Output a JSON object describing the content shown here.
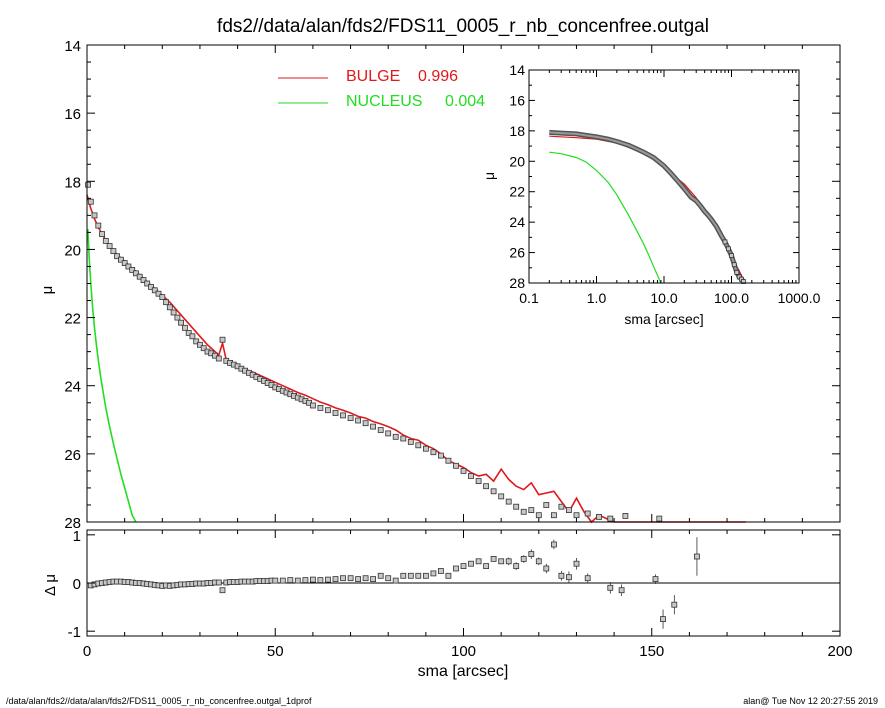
{
  "title": "fds2//data/alan/fds2/FDS11_0005_r_nb_concenfree.outgal",
  "footer_left": "/data/alan/fds2//data/alan/fds2/FDS11_0005_r_nb_concenfree.outgal_1dprof",
  "footer_right": "alan@  Tue Nov 12 20:27:55 2019",
  "colors": {
    "bulge": "#e0191c",
    "nucleus": "#22dd22",
    "data": "#555555",
    "axis": "#000000"
  },
  "chart_data": [
    {
      "id": "main",
      "type": "scatter",
      "xlabel": "",
      "ylabel": "μ",
      "xlim": [
        0,
        200
      ],
      "ylim": [
        28,
        14
      ],
      "ytick_labels": [
        "14",
        "16",
        "18",
        "20",
        "22",
        "24",
        "26",
        "28"
      ],
      "legend": [
        {
          "label": "BULGE",
          "value": "0.996",
          "color": "#e0191c"
        },
        {
          "label": "NUCLEUS",
          "value": "0.004",
          "color": "#22dd22"
        }
      ],
      "series": [
        {
          "name": "data",
          "x": [
            0.3,
            1,
            2,
            3,
            4,
            5,
            6,
            7,
            8,
            9,
            10,
            11,
            12,
            13,
            14,
            15,
            16,
            17,
            18,
            19,
            20,
            21,
            22,
            23,
            24,
            25,
            26,
            27,
            28,
            29,
            30,
            31,
            32,
            33,
            34,
            35,
            36,
            37,
            38,
            39,
            40,
            41,
            42,
            43,
            44,
            45,
            46,
            47,
            48,
            49,
            50,
            51,
            52,
            53,
            54,
            55,
            56,
            57,
            58,
            59,
            60,
            62,
            64,
            66,
            68,
            70,
            72,
            74,
            76,
            78,
            80,
            82,
            84,
            86,
            88,
            90,
            92,
            94,
            96,
            98,
            100,
            102,
            104,
            106,
            108,
            110,
            112,
            114,
            116,
            118,
            120,
            122,
            124,
            126,
            128,
            130,
            133,
            136,
            139,
            143,
            148,
            152,
            156
          ],
          "y": [
            18.1,
            18.6,
            19.0,
            19.3,
            19.55,
            19.75,
            19.9,
            20.05,
            20.2,
            20.3,
            20.4,
            20.5,
            20.6,
            20.7,
            20.8,
            20.9,
            21.0,
            21.1,
            21.2,
            21.3,
            21.4,
            21.55,
            21.7,
            21.85,
            22.0,
            22.15,
            22.3,
            22.45,
            22.55,
            22.7,
            22.8,
            22.9,
            23.0,
            23.05,
            23.12,
            23.2,
            22.65,
            23.27,
            23.33,
            23.38,
            23.43,
            23.5,
            23.56,
            23.62,
            23.68,
            23.74,
            23.8,
            23.86,
            23.92,
            23.98,
            24.05,
            24.1,
            24.15,
            24.2,
            24.25,
            24.3,
            24.35,
            24.4,
            24.45,
            24.5,
            24.58,
            24.65,
            24.72,
            24.8,
            24.87,
            24.95,
            25.02,
            25.1,
            25.2,
            25.3,
            25.4,
            25.5,
            25.55,
            25.65,
            25.75,
            25.85,
            25.95,
            26.05,
            26.2,
            26.35,
            26.5,
            26.65,
            26.8,
            26.95,
            27.1,
            27.25,
            27.4,
            27.55,
            27.7,
            27.65,
            27.8,
            27.5,
            27.8,
            27.55,
            27.65,
            27.8,
            27.75,
            27.85,
            27.9,
            27.82,
            28.05,
            27.9,
            28.05
          ]
        },
        {
          "name": "bulge",
          "x": [
            0,
            1,
            2,
            3,
            4,
            6,
            8,
            10,
            12,
            14,
            16,
            18,
            20,
            22,
            24,
            26,
            28,
            30,
            32,
            34,
            35,
            36,
            37,
            38,
            40,
            42,
            44,
            46,
            48,
            50,
            52,
            54,
            56,
            58,
            60,
            62,
            64,
            66,
            68,
            70,
            72,
            74,
            76,
            78,
            80,
            82,
            84,
            86,
            88,
            90,
            92,
            94,
            96,
            98,
            100,
            102,
            104,
            106,
            108,
            110,
            112,
            114,
            116,
            118,
            120,
            122,
            124,
            126,
            128,
            130,
            132,
            134,
            136,
            138,
            140,
            142,
            144,
            146,
            150,
            155,
            160,
            165,
            170,
            175
          ],
          "y": [
            18.4,
            18.8,
            19.1,
            19.35,
            19.55,
            19.9,
            20.15,
            20.35,
            20.55,
            20.75,
            20.95,
            21.15,
            21.35,
            21.55,
            21.8,
            22.05,
            22.3,
            22.55,
            22.8,
            23.0,
            23.1,
            22.75,
            23.25,
            23.3,
            23.42,
            23.52,
            23.6,
            23.7,
            23.8,
            23.9,
            24.0,
            24.1,
            24.2,
            24.28,
            24.38,
            24.48,
            24.56,
            24.65,
            24.72,
            24.8,
            24.9,
            24.95,
            25.05,
            25.12,
            25.2,
            25.3,
            25.45,
            25.55,
            25.6,
            25.75,
            25.85,
            26.0,
            26.2,
            26.3,
            26.4,
            26.55,
            26.65,
            26.6,
            26.8,
            26.45,
            26.75,
            26.95,
            27.05,
            26.85,
            27.2,
            27.15,
            27.1,
            27.4,
            27.7,
            27.3,
            27.7,
            28.0,
            27.8,
            27.9,
            28.05,
            28.05,
            28.05,
            28.1,
            28.1,
            28.15,
            28.15,
            28.15,
            28.15,
            28.15
          ]
        },
        {
          "name": "nucleus",
          "x": [
            0.2,
            0.6,
            1,
            1.5,
            2,
            2.5,
            3,
            3.5,
            4,
            5,
            6,
            7,
            8,
            9,
            10,
            12,
            13
          ],
          "y": [
            19.4,
            20.3,
            21.0,
            21.7,
            22.3,
            22.8,
            23.25,
            23.65,
            24.0,
            24.65,
            25.2,
            25.7,
            26.15,
            26.6,
            27.0,
            27.8,
            28.1
          ]
        }
      ]
    },
    {
      "id": "residual",
      "type": "scatter",
      "xlabel": "sma [arcsec]",
      "ylabel": "Δ μ",
      "xlim": [
        0,
        200
      ],
      "ylim": [
        -1.1,
        1.1
      ],
      "xtick_labels": [
        "0",
        "50",
        "100",
        "150",
        "200"
      ],
      "ytick_labels": [
        "-1",
        "0",
        "1"
      ],
      "x": [
        1,
        2,
        3,
        4,
        5,
        6,
        7,
        8,
        9,
        10,
        11,
        12,
        13,
        14,
        15,
        16,
        17,
        18,
        19,
        20,
        21,
        22,
        23,
        24,
        25,
        26,
        27,
        28,
        29,
        30,
        31,
        32,
        33,
        34,
        35,
        36,
        37,
        38,
        39,
        40,
        41,
        42,
        43,
        44,
        45,
        46,
        47,
        48,
        49,
        50,
        52,
        54,
        56,
        58,
        60,
        62,
        64,
        66,
        68,
        70,
        72,
        74,
        76,
        78,
        80,
        82,
        84,
        86,
        88,
        90,
        92,
        94,
        96,
        98,
        100,
        102,
        104,
        106,
        108,
        110,
        112,
        114,
        116,
        118,
        120,
        122,
        124,
        126,
        128,
        130,
        133,
        139,
        142,
        151,
        153,
        156,
        162
      ],
      "y": [
        -0.05,
        -0.03,
        -0.01,
        0.0,
        0.01,
        0.02,
        0.03,
        0.03,
        0.03,
        0.02,
        0.02,
        0.01,
        0.0,
        0.0,
        -0.01,
        -0.02,
        -0.03,
        -0.04,
        -0.05,
        -0.06,
        -0.05,
        -0.06,
        -0.05,
        -0.04,
        -0.03,
        -0.03,
        -0.02,
        -0.02,
        -0.01,
        -0.01,
        -0.01,
        0.0,
        0.0,
        0.01,
        0.01,
        -0.15,
        0.01,
        0.02,
        0.02,
        0.02,
        0.03,
        0.03,
        0.03,
        0.03,
        0.04,
        0.04,
        0.04,
        0.04,
        0.05,
        0.05,
        0.05,
        0.06,
        0.05,
        0.06,
        0.07,
        0.06,
        0.07,
        0.08,
        0.1,
        0.1,
        0.08,
        0.1,
        0.08,
        0.15,
        0.1,
        0.05,
        0.15,
        0.15,
        0.15,
        0.15,
        0.2,
        0.25,
        0.15,
        0.3,
        0.35,
        0.4,
        0.45,
        0.35,
        0.5,
        0.45,
        0.45,
        0.35,
        0.5,
        0.6,
        0.45,
        0.3,
        0.8,
        0.15,
        0.12,
        0.4,
        0.1,
        -0.1,
        -0.15,
        0.08,
        -0.75,
        -0.45,
        0.55
      ],
      "err": [
        0,
        0,
        0,
        0,
        0,
        0,
        0,
        0,
        0,
        0,
        0,
        0,
        0,
        0,
        0,
        0,
        0,
        0,
        0,
        0,
        0,
        0,
        0,
        0,
        0,
        0,
        0,
        0,
        0,
        0,
        0,
        0,
        0,
        0,
        0,
        0,
        0,
        0,
        0,
        0,
        0,
        0,
        0,
        0,
        0,
        0,
        0,
        0,
        0,
        0,
        0,
        0,
        0,
        0,
        0,
        0,
        0,
        0,
        0,
        0,
        0,
        0,
        0,
        0,
        0,
        0,
        0,
        0,
        0,
        0,
        0,
        0,
        0,
        0,
        0,
        0,
        0.03,
        0.05,
        0.05,
        0.05,
        0.08,
        0.08,
        0.08,
        0.1,
        0.08,
        0.1,
        0.1,
        0.1,
        0.12,
        0.12,
        0.1,
        0.12,
        0.12,
        0.1,
        0.2,
        0.2,
        0.4
      ]
    },
    {
      "id": "inset",
      "type": "scatter",
      "xlabel": "sma [arcsec]",
      "ylabel": "μ",
      "xscale": "log",
      "xlim": [
        0.1,
        1000
      ],
      "ylim": [
        28,
        14
      ],
      "xtick_labels": [
        "0.1",
        "1.0",
        "10.0",
        "100.0",
        "1000.0"
      ],
      "ytick_labels": [
        "14",
        "16",
        "18",
        "20",
        "22",
        "24",
        "26",
        "28"
      ],
      "series": [
        {
          "name": "data",
          "x": [
            0.2,
            0.3,
            0.5,
            0.7,
            1,
            1.5,
            2,
            3,
            4,
            5,
            7,
            10,
            13,
            16,
            20,
            25,
            30,
            35,
            40,
            45,
            50,
            60,
            70,
            80,
            90,
            100,
            110,
            120,
            130,
            140,
            150
          ],
          "y": [
            18.1,
            18.15,
            18.2,
            18.3,
            18.4,
            18.55,
            18.7,
            18.95,
            19.2,
            19.4,
            19.75,
            20.3,
            20.85,
            21.3,
            21.8,
            22.35,
            22.6,
            22.95,
            23.3,
            23.55,
            23.8,
            24.3,
            24.85,
            25.3,
            25.75,
            26.2,
            26.8,
            27.3,
            27.6,
            27.75,
            27.9
          ]
        },
        {
          "name": "bulge",
          "x": [
            0.2,
            0.5,
            1,
            2,
            4,
            7,
            10,
            15,
            20,
            30,
            40,
            50,
            70,
            100,
            130,
            160
          ],
          "y": [
            18.35,
            18.45,
            18.55,
            18.8,
            19.3,
            19.85,
            20.35,
            21.05,
            21.5,
            22.4,
            23.2,
            23.8,
            24.9,
            26.3,
            27.2,
            28.0
          ]
        },
        {
          "name": "nucleus",
          "x": [
            0.2,
            0.3,
            0.5,
            0.7,
            1,
            1.5,
            2,
            3,
            4,
            5,
            6,
            7,
            8,
            9
          ],
          "y": [
            19.4,
            19.5,
            19.75,
            20.05,
            20.6,
            21.4,
            22.2,
            23.55,
            24.6,
            25.45,
            26.2,
            26.9,
            27.5,
            28.0
          ]
        }
      ]
    }
  ]
}
